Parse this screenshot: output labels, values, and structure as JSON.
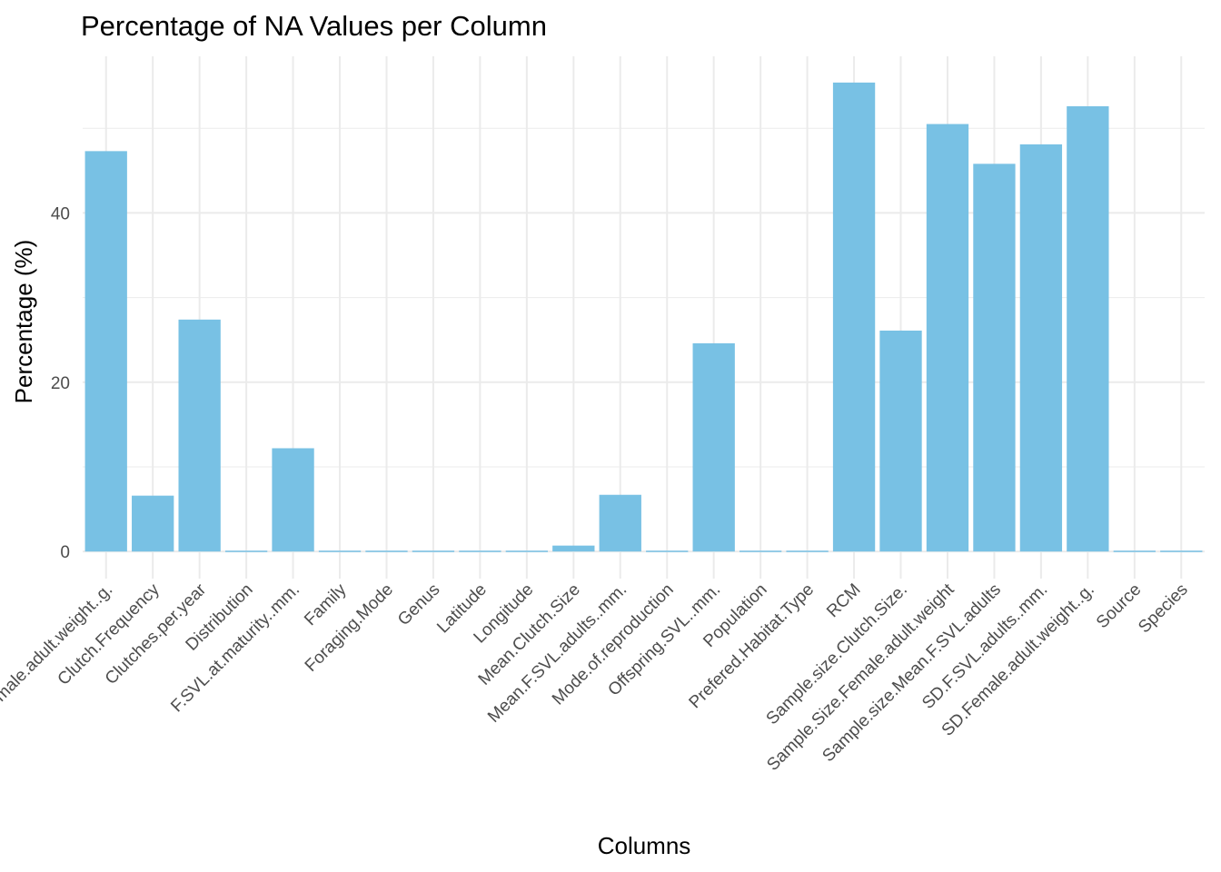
{
  "chart_data": {
    "type": "bar",
    "title": "Percentage of NA Values per Column",
    "xlabel": "Columns",
    "ylabel": "Percentage (%)",
    "categories": [
      "Average.Female.adult.weight..g.",
      "Clutch.Frequency",
      "Clutches.per.year",
      "Distribution",
      "F.SVL.at.maturity..mm.",
      "Family",
      "Foraging.Mode",
      "Genus",
      "Latitude",
      "Longitude",
      "Mean.Clutch.Size",
      "Mean.F.SVL.adults..mm.",
      "Mode.of.reproduction",
      "Offspring.SVL..mm.",
      "Population",
      "Prefered.Habitat.Type",
      "RCM",
      "Sample.size.Clutch.Size.",
      "Sample.Size.Female.adult.weight",
      "Sample.size.Mean.F.SVL.adults",
      "SD.F.SVL.adults..mm.",
      "SD.Female.adult.weight..g.",
      "Source",
      "Species"
    ],
    "values": [
      47.3,
      6.6,
      27.4,
      0.1,
      12.2,
      0.1,
      0.1,
      0.1,
      0.1,
      0.1,
      0.7,
      6.7,
      0.1,
      24.6,
      0.1,
      0.1,
      55.4,
      26.1,
      50.5,
      45.8,
      48.1,
      52.6,
      0.1,
      0.1
    ],
    "ylim": [
      -3.2,
      58.5
    ],
    "yticks": [
      0,
      20,
      40
    ],
    "grid": true,
    "legend": "none",
    "bar_color": "#78c1e4"
  }
}
